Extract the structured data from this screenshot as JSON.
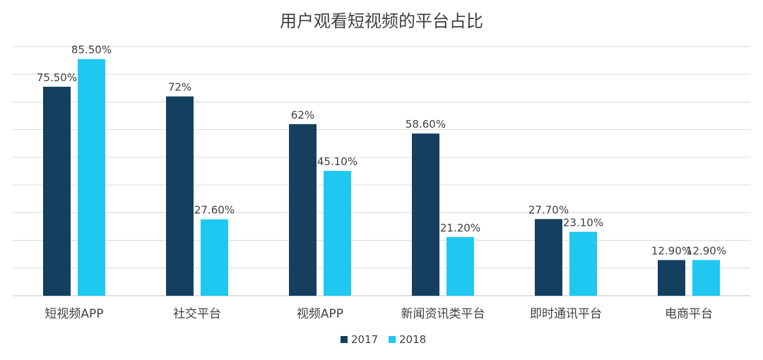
{
  "chart_data": {
    "type": "bar",
    "title": "用户观看短视频的平台占比",
    "xlabel": "",
    "ylabel": "",
    "ylim": [
      0,
      90
    ],
    "grid": true,
    "legend_position": "bottom",
    "categories": [
      "短视频APP",
      "社交平台",
      "视频APP",
      "新闻资讯类平台",
      "即时通讯平台",
      "电商平台"
    ],
    "series": [
      {
        "name": "2017",
        "color": "#143f5f",
        "values": [
          75.5,
          72,
          62,
          58.6,
          27.7,
          12.9
        ],
        "labels": [
          "75.50%",
          "72%",
          "62%",
          "58.60%",
          "27.70%",
          "12.90%"
        ]
      },
      {
        "name": "2018",
        "color": "#1fc8f0",
        "values": [
          85.5,
          27.6,
          45.1,
          21.2,
          23.1,
          12.9
        ],
        "labels": [
          "85.50%",
          "27.60%",
          "45.10%",
          "21.20%",
          "23.10%",
          "12.90%"
        ]
      }
    ]
  }
}
